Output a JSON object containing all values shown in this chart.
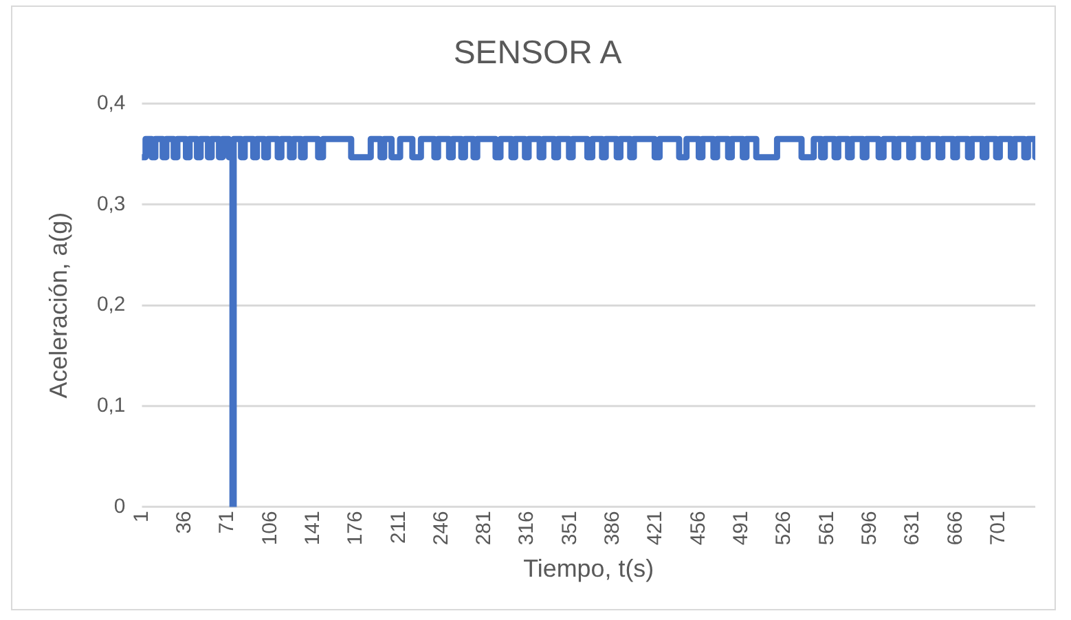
{
  "chart_data": {
    "type": "step",
    "title": "SENSOR A",
    "xlabel": "Tiempo, t(s)",
    "ylabel": "Aceleración, a(g)",
    "series": [
      {
        "color": "#4472c4",
        "x": [
          1,
          4,
          9,
          12,
          18,
          21,
          27,
          30,
          37,
          40,
          46,
          49,
          55,
          58,
          64,
          67,
          72,
          75,
          76,
          82,
          85,
          92,
          95,
          101,
          104,
          112,
          115,
          122,
          125,
          131,
          134,
          145,
          149,
          172,
          188,
          196,
          199,
          205,
          212,
          222,
          229,
          240,
          243,
          252,
          255,
          262,
          265,
          272,
          275,
          290,
          294,
          303,
          306,
          314,
          317,
          326,
          329,
          338,
          341,
          350,
          353,
          365,
          369,
          377,
          380,
          389,
          392,
          400,
          403,
          420,
          424,
          440,
          446,
          456,
          459,
          468,
          471,
          480,
          483,
          492,
          495,
          503,
          520,
          540,
          550,
          556,
          559,
          567,
          570,
          578,
          581,
          590,
          593,
          603,
          607,
          616,
          619,
          628,
          631,
          640,
          643,
          652,
          655,
          664,
          667,
          676,
          679,
          688,
          691,
          699,
          702,
          711,
          714,
          722,
          725,
          731
        ],
        "values": [
          0.347,
          0.365,
          0.347,
          0.365,
          0.347,
          0.365,
          0.347,
          0.365,
          0.347,
          0.365,
          0.347,
          0.365,
          0.347,
          0.365,
          0.347,
          0.365,
          0.347,
          0,
          0.365,
          0.347,
          0.365,
          0.347,
          0.365,
          0.347,
          0.365,
          0.347,
          0.365,
          0.347,
          0.365,
          0.347,
          0.365,
          0.347,
          0.365,
          0.347,
          0.365,
          0.347,
          0.365,
          0.347,
          0.365,
          0.347,
          0.365,
          0.347,
          0.365,
          0.347,
          0.365,
          0.347,
          0.365,
          0.347,
          0.365,
          0.347,
          0.365,
          0.347,
          0.365,
          0.347,
          0.365,
          0.347,
          0.365,
          0.347,
          0.365,
          0.347,
          0.365,
          0.347,
          0.365,
          0.347,
          0.365,
          0.347,
          0.365,
          0.347,
          0.365,
          0.347,
          0.365,
          0.347,
          0.365,
          0.347,
          0.365,
          0.347,
          0.365,
          0.347,
          0.365,
          0.347,
          0.365,
          0.347,
          0.365,
          0.347,
          0.365,
          0.347,
          0.365,
          0.347,
          0.365,
          0.347,
          0.365,
          0.347,
          0.365,
          0.347,
          0.365,
          0.347,
          0.365,
          0.347,
          0.365,
          0.347,
          0.365,
          0.347,
          0.365,
          0.347,
          0.365,
          0.347,
          0.365,
          0.347,
          0.365,
          0.347,
          0.365,
          0.347,
          0.365,
          0.347,
          0.365,
          0.347
        ]
      }
    ],
    "xlim": [
      1,
      731
    ],
    "xticks": [
      1,
      36,
      71,
      106,
      141,
      176,
      211,
      246,
      281,
      316,
      351,
      386,
      421,
      456,
      491,
      526,
      561,
      596,
      631,
      666,
      701
    ],
    "ylim": [
      0,
      0.4
    ],
    "yticks": [
      0,
      {
        "value": 0.1,
        "label": "0,1"
      },
      {
        "value": 0.2,
        "label": "0,2"
      },
      {
        "value": 0.3,
        "label": "0,3"
      },
      {
        "value": 0.4,
        "label": "0,4"
      }
    ],
    "grid": "y",
    "legend": false
  }
}
